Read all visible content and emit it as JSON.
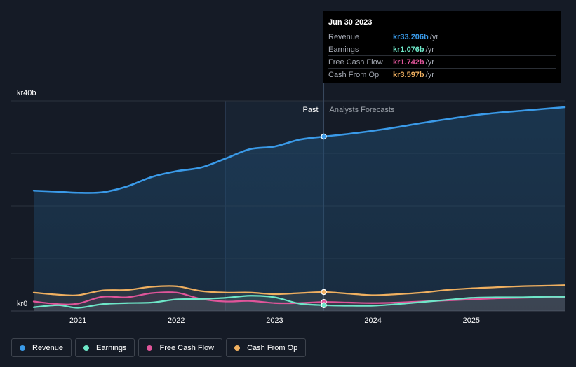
{
  "tooltip": {
    "date": "Jun 30 2023",
    "rows": [
      {
        "name": "Revenue",
        "value": "kr33.206b",
        "unit": "/yr",
        "color": "#3a9ae8"
      },
      {
        "name": "Earnings",
        "value": "kr1.076b",
        "unit": "/yr",
        "color": "#6ee7c8"
      },
      {
        "name": "Free Cash Flow",
        "value": "kr1.742b",
        "unit": "/yr",
        "color": "#e0559a"
      },
      {
        "name": "Cash From Op",
        "value": "kr3.597b",
        "unit": "/yr",
        "color": "#f0b060"
      }
    ]
  },
  "legend": [
    {
      "label": "Revenue",
      "color": "#3a9ae8"
    },
    {
      "label": "Earnings",
      "color": "#6ee7c8"
    },
    {
      "label": "Free Cash Flow",
      "color": "#e0559a"
    },
    {
      "label": "Cash From Op",
      "color": "#f0b060"
    }
  ],
  "chart_data": {
    "type": "line",
    "title": "",
    "xlabel": "",
    "ylabel": "",
    "y_unit": "kr b",
    "ylim": [
      0,
      40
    ],
    "xlim": [
      2020.55,
      2025.95
    ],
    "y_axis_labels": [
      {
        "value": 40,
        "label": "kr40b"
      },
      {
        "value": 0,
        "label": "kr0"
      }
    ],
    "gridlines": [
      0,
      10,
      20,
      30,
      40
    ],
    "x_ticks": [
      {
        "value": 2021,
        "label": "2021"
      },
      {
        "value": 2022,
        "label": "2022"
      },
      {
        "value": 2023,
        "label": "2023"
      },
      {
        "value": 2024,
        "label": "2024"
      },
      {
        "value": 2025,
        "label": "2025"
      }
    ],
    "past_label": "Past",
    "forecast_label": "Analysts Forecasts",
    "past_start": 2022.5,
    "present": 2023.5,
    "series": [
      {
        "name": "Revenue",
        "color": "#3a9ae8",
        "x": [
          2020.55,
          2020.8,
          2021.0,
          2021.25,
          2021.5,
          2021.75,
          2022.0,
          2022.25,
          2022.5,
          2022.75,
          2023.0,
          2023.25,
          2023.5,
          2023.75,
          2024.0,
          2024.25,
          2024.5,
          2024.75,
          2025.0,
          2025.25,
          2025.5,
          2025.75,
          2025.95
        ],
        "values": [
          22.9,
          22.7,
          22.5,
          22.6,
          23.7,
          25.5,
          26.6,
          27.3,
          29.0,
          30.8,
          31.3,
          32.6,
          33.2,
          33.7,
          34.3,
          35.0,
          35.8,
          36.5,
          37.2,
          37.7,
          38.1,
          38.5,
          38.8
        ]
      },
      {
        "name": "Earnings",
        "color": "#6ee7c8",
        "x": [
          2020.55,
          2020.8,
          2021.0,
          2021.25,
          2021.5,
          2021.75,
          2022.0,
          2022.25,
          2022.5,
          2022.75,
          2023.0,
          2023.25,
          2023.5,
          2023.75,
          2024.0,
          2024.25,
          2024.5,
          2024.75,
          2025.0,
          2025.25,
          2025.5,
          2025.75,
          2025.95
        ],
        "values": [
          0.7,
          1.1,
          0.6,
          1.3,
          1.5,
          1.6,
          2.2,
          2.3,
          2.5,
          2.9,
          2.6,
          1.4,
          1.1,
          1.0,
          1.0,
          1.3,
          1.7,
          2.1,
          2.5,
          2.6,
          2.6,
          2.7,
          2.7
        ]
      },
      {
        "name": "Free Cash Flow",
        "color": "#e0559a",
        "x": [
          2020.55,
          2020.8,
          2021.0,
          2021.25,
          2021.5,
          2021.75,
          2022.0,
          2022.25,
          2022.5,
          2022.75,
          2023.0,
          2023.25,
          2023.5,
          2023.75,
          2024.0,
          2024.25,
          2024.5,
          2024.75,
          2025.0,
          2025.25,
          2025.5,
          2025.75,
          2025.95
        ],
        "values": [
          1.8,
          1.3,
          1.4,
          2.7,
          2.6,
          3.4,
          3.5,
          2.3,
          1.8,
          1.9,
          1.5,
          1.5,
          1.7,
          1.6,
          1.5,
          1.6,
          1.8,
          2.0,
          2.2,
          2.4,
          2.5,
          2.6,
          2.6
        ]
      },
      {
        "name": "Cash From Op",
        "color": "#f0b060",
        "x": [
          2020.55,
          2020.8,
          2021.0,
          2021.25,
          2021.5,
          2021.75,
          2022.0,
          2022.25,
          2022.5,
          2022.75,
          2023.0,
          2023.25,
          2023.5,
          2023.75,
          2024.0,
          2024.25,
          2024.5,
          2024.75,
          2025.0,
          2025.25,
          2025.5,
          2025.75,
          2025.95
        ],
        "values": [
          3.5,
          3.1,
          3.0,
          3.9,
          4.0,
          4.6,
          4.7,
          3.8,
          3.5,
          3.5,
          3.2,
          3.4,
          3.6,
          3.3,
          3.0,
          3.2,
          3.5,
          4.0,
          4.3,
          4.5,
          4.7,
          4.8,
          4.9
        ]
      }
    ],
    "highlight": {
      "x": 2023.5,
      "points": [
        {
          "series": "Revenue",
          "value": 33.2
        },
        {
          "series": "Cash From Op",
          "value": 3.6
        },
        {
          "series": "Free Cash Flow",
          "value": 1.7
        },
        {
          "series": "Earnings",
          "value": 1.1
        }
      ]
    }
  }
}
